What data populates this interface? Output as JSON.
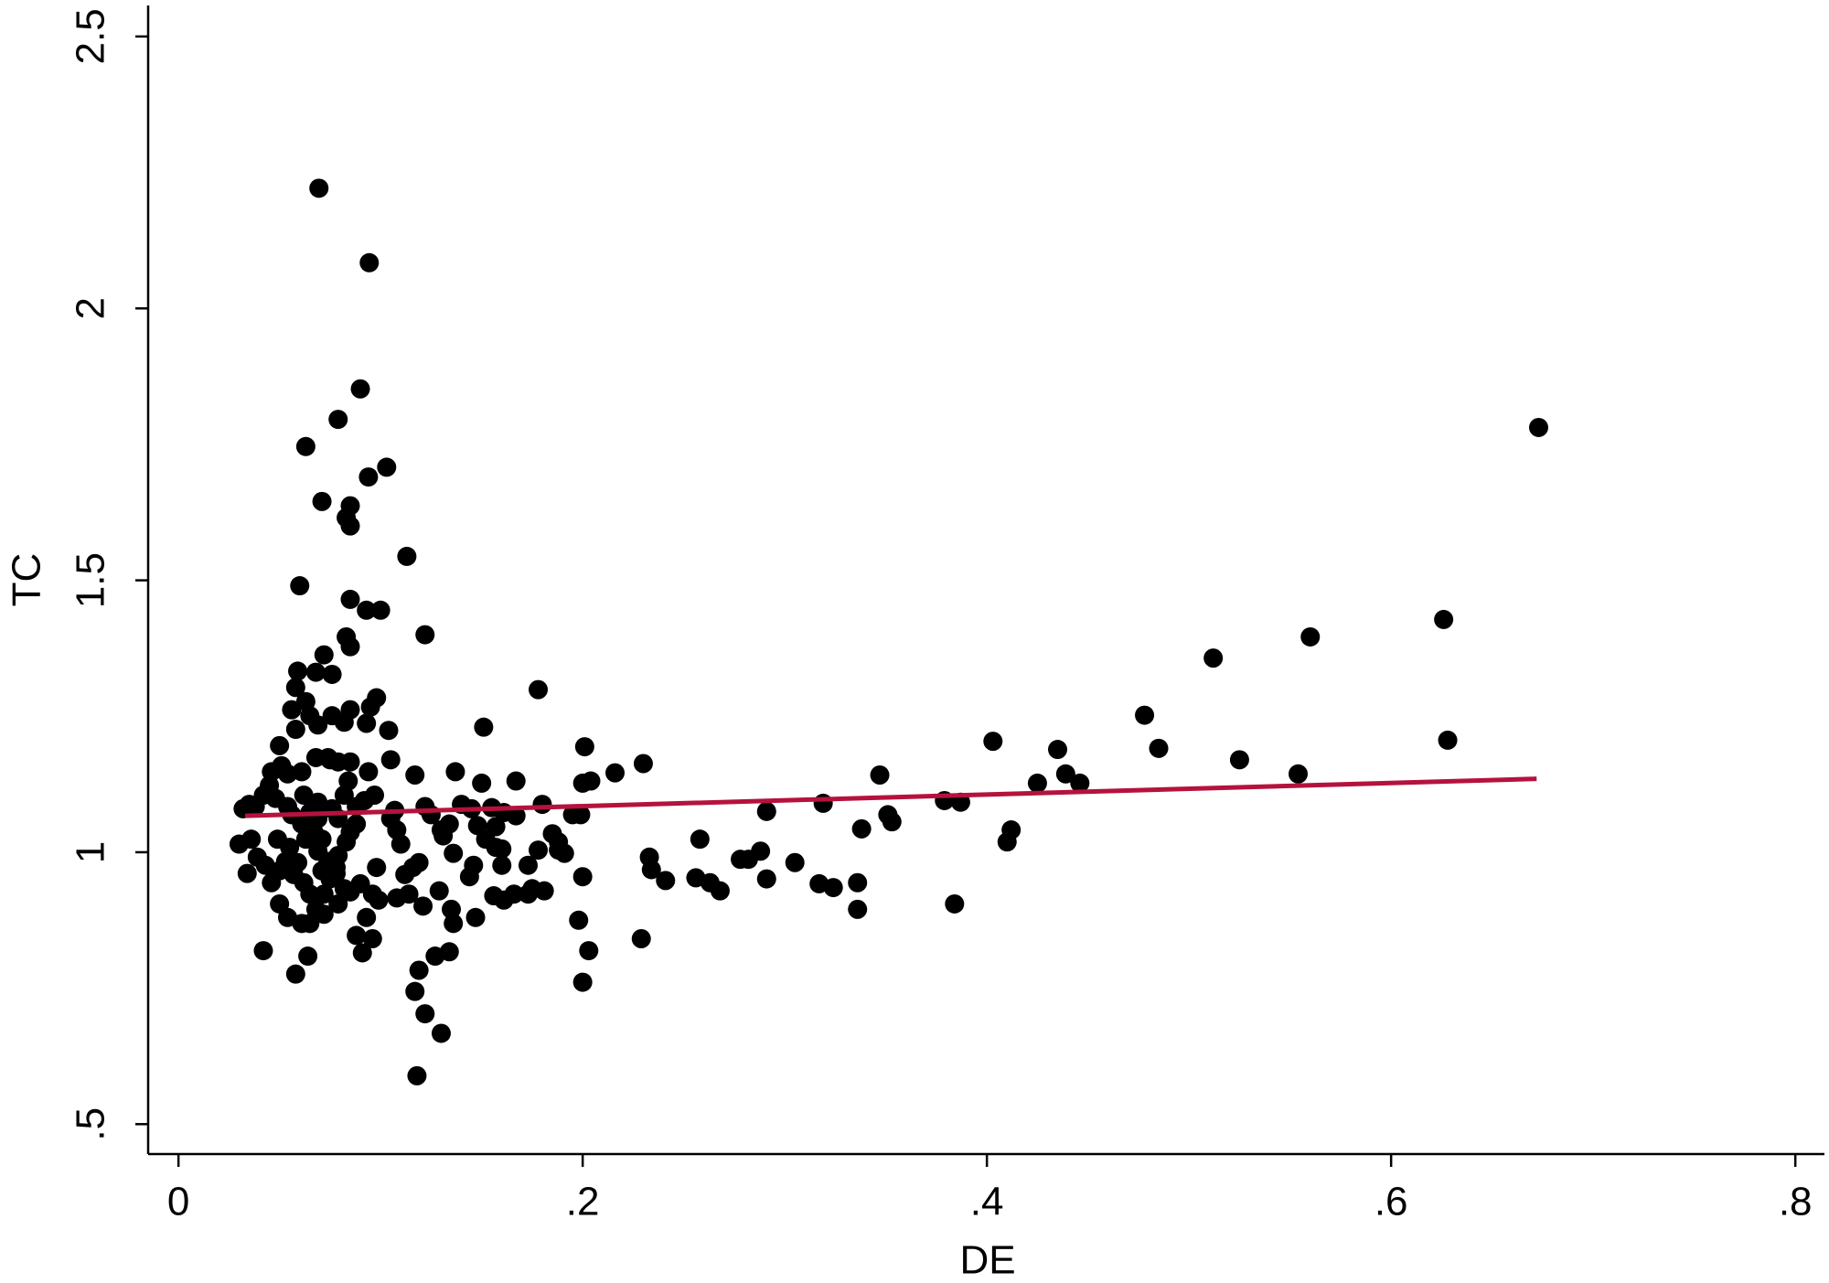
{
  "chart_data": {
    "type": "scatter",
    "x_label": "DE",
    "y_label": "TC",
    "xlim": [
      -0.015,
      0.8144
    ],
    "ylim": [
      0.445,
      2.557
    ],
    "xticks": [
      {
        "value": 0,
        "label": "0"
      },
      {
        "value": 0.2,
        "label": ".2"
      },
      {
        "value": 0.4,
        "label": ".4"
      },
      {
        "value": 0.6,
        "label": ".6"
      },
      {
        "value": 0.8,
        "label": ".8"
      }
    ],
    "yticks": [
      {
        "value": 0.5,
        "label": ".5"
      },
      1,
      1.5,
      2,
      2.5
    ],
    "grid": false,
    "series": [
      {
        "color": "#000000",
        "x": [
          0.0695,
          0.0944,
          0.09,
          0.079,
          0.063,
          0.103,
          0.094,
          0.071,
          0.085,
          0.083,
          0.085,
          0.113,
          0.06,
          0.085,
          0.093,
          0.1,
          0.122,
          0.083,
          0.085,
          0.072,
          0.059,
          0.068,
          0.076,
          0.178,
          0.058,
          0.063,
          0.098,
          0.095,
          0.056,
          0.085,
          0.076,
          0.065,
          0.151,
          0.104,
          0.093,
          0.069,
          0.058,
          0.082,
          0.201,
          0.403,
          0.435,
          0.478,
          0.485,
          0.512,
          0.56,
          0.626,
          0.628,
          0.673,
          0.525,
          0.554,
          0.23,
          0.216,
          0.137,
          0.117,
          0.105,
          0.167,
          0.15,
          0.425,
          0.439,
          0.446,
          0.347,
          0.05,
          0.051,
          0.046,
          0.054,
          0.061,
          0.068,
          0.075,
          0.045,
          0.042,
          0.048,
          0.035,
          0.032,
          0.038,
          0.351,
          0.353,
          0.319,
          0.291,
          0.379,
          0.387,
          0.412,
          0.41,
          0.338,
          0.305,
          0.288,
          0.278,
          0.282,
          0.258,
          0.233,
          0.234,
          0.241,
          0.256,
          0.263,
          0.268,
          0.291,
          0.317,
          0.324,
          0.336,
          0.336,
          0.384,
          0.229,
          0.2,
          0.204,
          0.195,
          0.199,
          0.188,
          0.191,
          0.2,
          0.198,
          0.203,
          0.2,
          0.18,
          0.185,
          0.188,
          0.178,
          0.181,
          0.175,
          0.173,
          0.166,
          0.161,
          0.156,
          0.173,
          0.16,
          0.167,
          0.161,
          0.157,
          0.152,
          0.148,
          0.155,
          0.145,
          0.14,
          0.16,
          0.157,
          0.146,
          0.144,
          0.147,
          0.135,
          0.136,
          0.134,
          0.127,
          0.13,
          0.122,
          0.117,
          0.121,
          0.119,
          0.118,
          0.136,
          0.131,
          0.134,
          0.122,
          0.125,
          0.13,
          0.129,
          0.114,
          0.108,
          0.099,
          0.096,
          0.119,
          0.116,
          0.11,
          0.108,
          0.105,
          0.107,
          0.112,
          0.03,
          0.036,
          0.039,
          0.034,
          0.043,
          0.046,
          0.05,
          0.053,
          0.049,
          0.055,
          0.057,
          0.05,
          0.054,
          0.042,
          0.058,
          0.064,
          0.061,
          0.065,
          0.068,
          0.072,
          0.075,
          0.078,
          0.079,
          0.083,
          0.085,
          0.088,
          0.079,
          0.076,
          0.069,
          0.065,
          0.063,
          0.067,
          0.069,
          0.071,
          0.062,
          0.065,
          0.059,
          0.072,
          0.079,
          0.085,
          0.088,
          0.091,
          0.093,
          0.096,
          0.098,
          0.09,
          0.082,
          0.078,
          0.074,
          0.071,
          0.061,
          0.056,
          0.054,
          0.069,
          0.092,
          0.097,
          0.084,
          0.094,
          0.085,
          0.079,
          0.074,
          0.088,
          0.082,
          0.062
        ],
        "values": [
          2.221,
          2.084,
          1.852,
          1.796,
          1.746,
          1.708,
          1.69,
          1.645,
          1.637,
          1.615,
          1.6,
          1.544,
          1.49,
          1.465,
          1.445,
          1.445,
          1.4,
          1.396,
          1.378,
          1.363,
          1.333,
          1.331,
          1.327,
          1.299,
          1.303,
          1.277,
          1.284,
          1.267,
          1.262,
          1.262,
          1.251,
          1.251,
          1.23,
          1.224,
          1.237,
          1.234,
          1.226,
          1.239,
          1.194,
          1.204,
          1.189,
          1.252,
          1.191,
          1.357,
          1.396,
          1.428,
          1.206,
          1.781,
          1.17,
          1.144,
          1.163,
          1.146,
          1.148,
          1.142,
          1.17,
          1.131,
          1.127,
          1.127,
          1.144,
          1.127,
          1.142,
          1.196,
          1.159,
          1.148,
          1.144,
          1.148,
          1.174,
          1.17,
          1.123,
          1.105,
          1.099,
          1.088,
          1.08,
          1.084,
          1.069,
          1.056,
          1.09,
          1.075,
          1.095,
          1.092,
          1.041,
          1.019,
          1.043,
          0.981,
          1.002,
          0.987,
          0.987,
          1.024,
          0.991,
          0.968,
          0.948,
          0.953,
          0.944,
          0.929,
          0.951,
          0.942,
          0.935,
          0.944,
          0.895,
          0.905,
          0.841,
          1.127,
          1.131,
          1.069,
          1.069,
          1.004,
          0.998,
          0.955,
          0.875,
          0.819,
          0.761,
          1.088,
          1.034,
          1.019,
          1.004,
          0.929,
          0.933,
          0.923,
          0.923,
          0.912,
          0.92,
          0.976,
          0.976,
          1.067,
          1.073,
          1.047,
          1.024,
          1.049,
          1.082,
          1.08,
          1.088,
          1.006,
          1.009,
          0.976,
          0.955,
          0.88,
          0.895,
          0.869,
          0.817,
          0.809,
          0.667,
          0.703,
          0.744,
          0.901,
          0.783,
          0.589,
          0.998,
          1.03,
          1.052,
          1.084,
          1.069,
          1.041,
          0.929,
          0.923,
          0.916,
          0.912,
          0.923,
          0.981,
          0.972,
          1.015,
          1.041,
          1.062,
          1.077,
          0.959,
          1.015,
          1.024,
          0.991,
          0.961,
          0.976,
          0.944,
          0.966,
          0.983,
          1.024,
          1.009,
          0.959,
          0.905,
          0.88,
          0.819,
          0.776,
          0.809,
          0.869,
          0.869,
          0.895,
          0.923,
          0.951,
          0.972,
          0.994,
          1.019,
          1.037,
          1.052,
          1.062,
          1.08,
          1.092,
          1.073,
          1.024,
          1.037,
          1.002,
          0.966,
          0.944,
          0.923,
          0.981,
          0.886,
          0.905,
          0.927,
          0.847,
          0.815,
          0.88,
          0.841,
          0.972,
          0.942,
          0.933,
          0.961,
          0.983,
          1.024,
          1.052,
          1.069,
          1.084,
          1.062,
          1.095,
          1.105,
          1.131,
          1.148,
          1.166,
          1.166,
          1.174,
          1.084,
          1.105,
          1.105
        ]
      }
    ],
    "fit_line": {
      "color": "#b5123e",
      "x": [
        0.033,
        0.672
      ],
      "values": [
        1.067,
        1.135
      ]
    }
  }
}
